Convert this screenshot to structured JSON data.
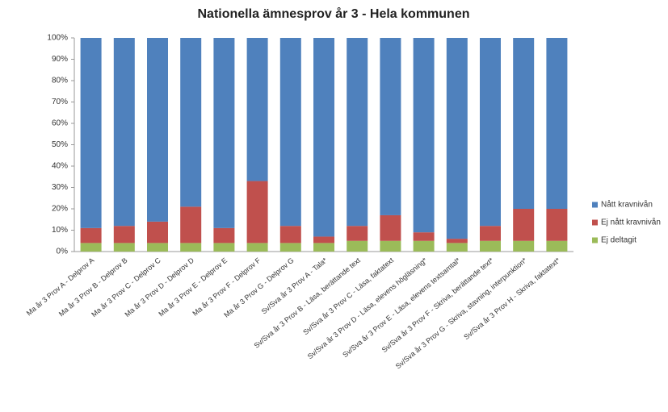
{
  "chart_data": {
    "type": "stacked_bar",
    "title": "Nationella ämnesprov år 3 - Hela kommunen",
    "categories": [
      "Ma år 3 Prov A - Delprov A",
      "Ma år 3 Prov B - Delprov B",
      "Ma år 3 Prov C - Delprov C",
      "Ma år 3 Prov D - Delprov D",
      "Ma år 3 Prov E - Delprov E",
      "Ma år 3 Prov F - Delprov F",
      "Ma år 3 Prov G - Delprov G",
      "Sv/Sva år 3 Prov A - Tala*",
      "Sv/Sva år 3 Prov B - Läsa, berättande text",
      "Sv/Sva år 3 Prov C - Läsa, faktatext",
      "Sv/Sva år 3 Prov D - Läsa, elevens högläsning*",
      "Sv/Sva år 3 Prov E - Läsa, elevens textsamtal*",
      "Sv/Sva år 3 Prov F - Skriva, berättande text*",
      "Sv/Sva år 3 Prov G - Skriva, stavning, interpunktion*",
      "Sv/Sva år 3 Prov H - Skriva, faktatext*"
    ],
    "series": [
      {
        "name": "Nått kravnivån",
        "color": "#4f81bd",
        "values": [
          89,
          88,
          86,
          79,
          89,
          67,
          88,
          93,
          88,
          83,
          91,
          94,
          88,
          80,
          80
        ]
      },
      {
        "name": "Ej nått kravnivån",
        "color": "#c0504d",
        "values": [
          7,
          8,
          10,
          17,
          7,
          29,
          8,
          3,
          7,
          12,
          4,
          2,
          7,
          15,
          15
        ]
      },
      {
        "name": "Ej deltagit",
        "color": "#9bbb59",
        "values": [
          4,
          4,
          4,
          4,
          4,
          4,
          4,
          4,
          5,
          5,
          5,
          4,
          5,
          5,
          5
        ]
      }
    ],
    "ylim": [
      0,
      100
    ],
    "yticks": [
      {
        "value": 0,
        "label": "0%"
      },
      {
        "value": 10,
        "label": "10%"
      },
      {
        "value": 20,
        "label": "20%"
      },
      {
        "value": 30,
        "label": "30%"
      },
      {
        "value": 40,
        "label": "40%"
      },
      {
        "value": 50,
        "label": "50%"
      },
      {
        "value": 60,
        "label": "60%"
      },
      {
        "value": 70,
        "label": "70%"
      },
      {
        "value": 80,
        "label": "80%"
      },
      {
        "value": 90,
        "label": "90%"
      },
      {
        "value": 100,
        "label": "100%"
      }
    ],
    "grid": false,
    "legend": "right"
  }
}
